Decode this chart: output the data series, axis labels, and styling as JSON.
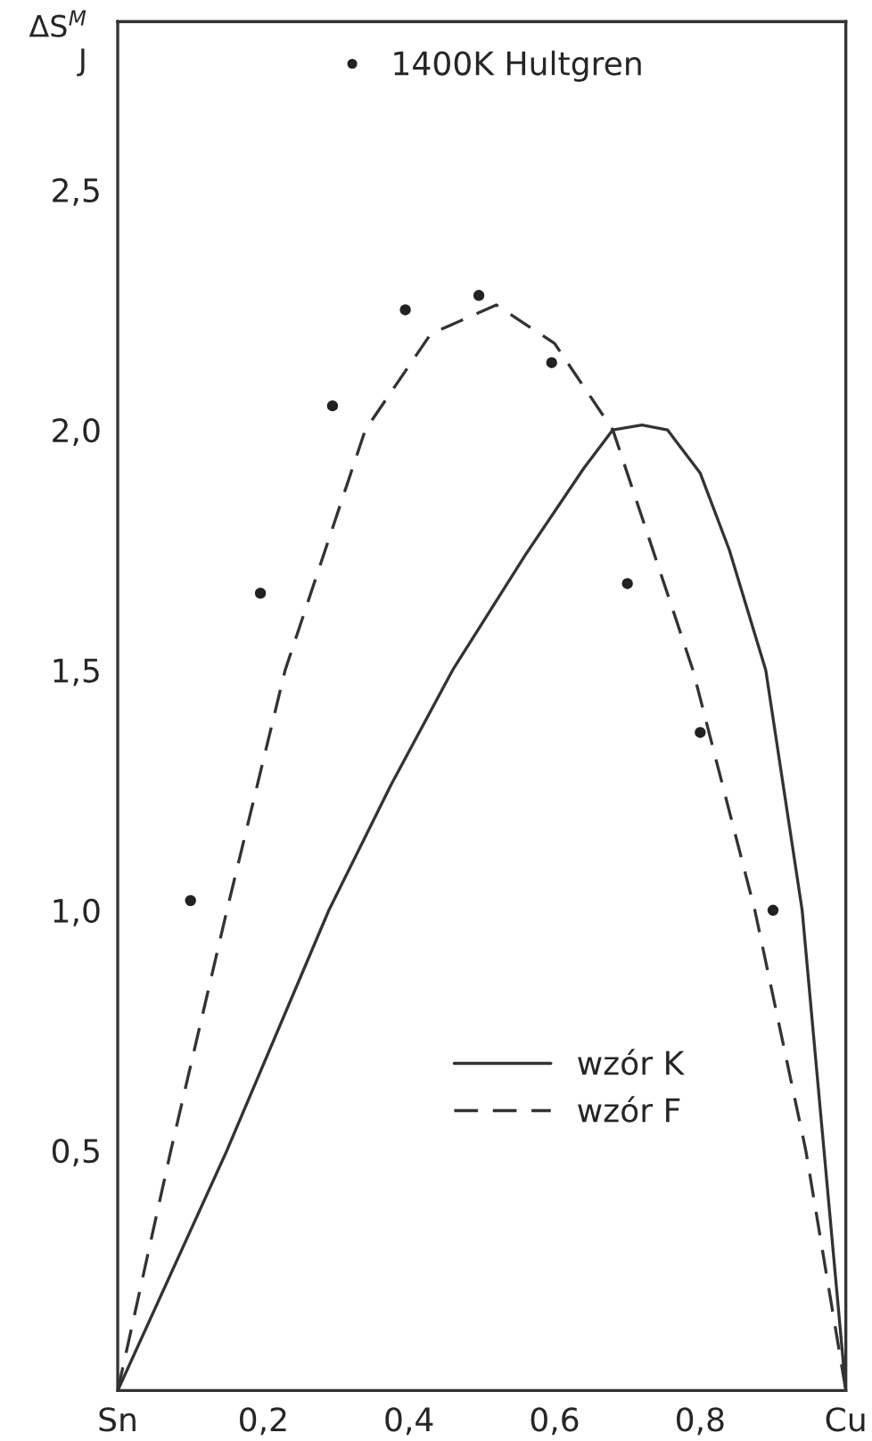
{
  "chart_data": {
    "type": "line",
    "ylabel": "ΔS$^{M}$\nJ",
    "xlim": [
      0,
      1
    ],
    "ylim": [
      0,
      2.85
    ],
    "xticks": [
      {
        "value": 0,
        "label": "Sn"
      },
      {
        "value": 0.2,
        "label": "0,2"
      },
      {
        "value": 0.4,
        "label": "0,4"
      },
      {
        "value": 0.6,
        "label": "0,6"
      },
      {
        "value": 0.8,
        "label": "0,8"
      },
      {
        "value": 1,
        "label": "Cu"
      }
    ],
    "yticks": [
      {
        "value": 0.5,
        "label": "0,5"
      },
      {
        "value": 1.0,
        "label": "1,0"
      },
      {
        "value": 1.5,
        "label": "1,5"
      },
      {
        "value": 2.0,
        "label": "2,0"
      },
      {
        "value": 2.5,
        "label": "2,5"
      }
    ],
    "grid": false,
    "legend": "center",
    "series": [
      {
        "name": "1400K Hultgren",
        "type": "scatter",
        "color": "#222222",
        "marker": "circle",
        "x": [
          0.1,
          0.196,
          0.295,
          0.395,
          0.496,
          0.596,
          0.7,
          0.8,
          0.9
        ],
        "values": [
          1.02,
          1.66,
          2.05,
          2.25,
          2.28,
          2.14,
          1.68,
          1.37,
          1.0
        ]
      },
      {
        "name": "wzór K",
        "color": "#333333",
        "line_style": "solid",
        "x": [
          0,
          0.15,
          0.29,
          0.375,
          0.46,
          0.56,
          0.64,
          0.68,
          0.72,
          0.755,
          0.8,
          0.84,
          0.89,
          0.94,
          0.97,
          1.0
        ],
        "values": [
          0,
          0.5,
          1.0,
          1.26,
          1.5,
          1.74,
          1.92,
          2.0,
          2.01,
          2.0,
          1.91,
          1.75,
          1.5,
          1.0,
          0.5,
          0
        ]
      },
      {
        "name": "wzór F",
        "color": "#333333",
        "line_style": "dashed",
        "x": [
          0,
          0.073,
          0.15,
          0.23,
          0.34,
          0.43,
          0.52,
          0.6,
          0.68,
          0.79,
          0.875,
          0.945,
          1.0
        ],
        "values": [
          0,
          0.5,
          1.0,
          1.5,
          2.0,
          2.2,
          2.26,
          2.18,
          2.0,
          1.5,
          1.0,
          0.5,
          0
        ]
      }
    ]
  }
}
